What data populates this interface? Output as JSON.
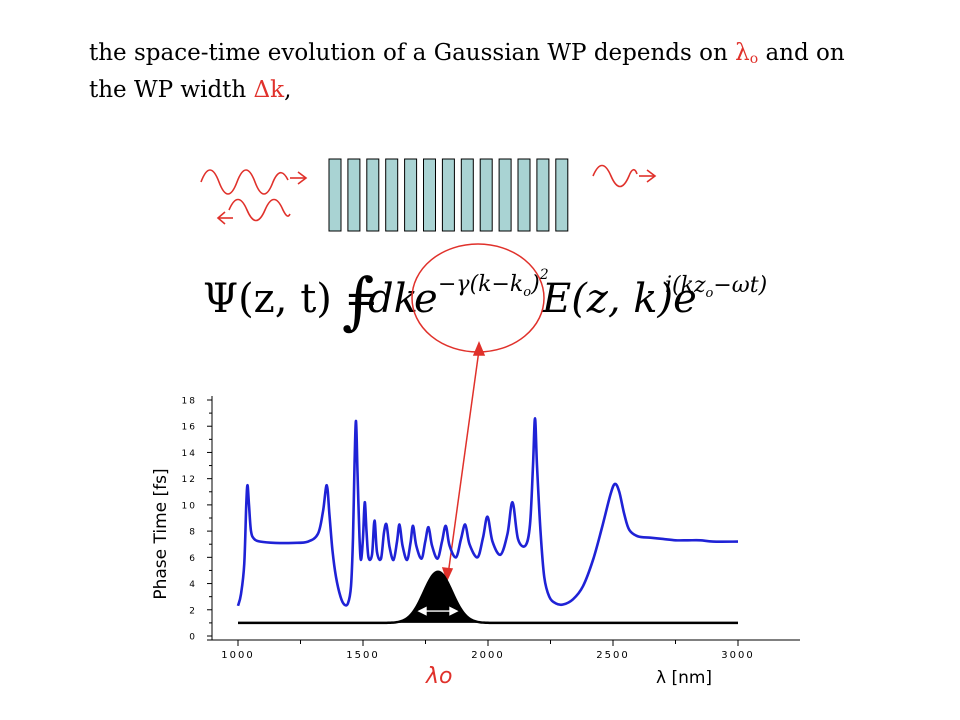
{
  "heading": {
    "line1_before": "the space-time evolution of a Gaussian WP depends on ",
    "lambda_symbol": "λ",
    "lambda_sub": "o",
    "line1_after": " and on",
    "line2_before": "the WP width ",
    "delta_k": "Δk",
    "line2_after": ",",
    "accent_color": "#e0312b"
  },
  "formula": {
    "psi": "Ψ(z, t) =",
    "integral": "∫",
    "dk": "dk",
    "e": "e",
    "gaussian_exponent": "−γ(k−k",
    "gaussian_exponent_sub": "o",
    "gaussian_exponent_close": ")",
    "gaussian_exponent_power": "2",
    "efield": "E(z, k)e",
    "phase_exponent": "i(kz",
    "phase_exponent_sub": "o",
    "phase_exponent_rest": "−ωt)"
  },
  "chart_data": {
    "type": "line",
    "title": "",
    "xlabel": "λ [nm]",
    "ylabel": "Phase Time [fs]",
    "xlim": [
      1000,
      3000
    ],
    "ylim": [
      0,
      18
    ],
    "xticks": [
      "1000",
      "1500",
      "2000",
      "2500",
      "3000"
    ],
    "yticks": [
      "0",
      "2",
      "4",
      "6",
      "8",
      "10",
      "12",
      "14",
      "16",
      "18"
    ],
    "lambda_marker": "λo",
    "lambda_marker_x": 1800,
    "series": [
      {
        "color": "#1f22d6",
        "points": [
          [
            1000,
            2.3
          ],
          [
            1012,
            3.2
          ],
          [
            1025,
            5.5
          ],
          [
            1033,
            10
          ],
          [
            1038,
            11.5
          ],
          [
            1044,
            10
          ],
          [
            1052,
            8
          ],
          [
            1065,
            7.4
          ],
          [
            1090,
            7.2
          ],
          [
            1150,
            7.1
          ],
          [
            1220,
            7.1
          ],
          [
            1280,
            7.2
          ],
          [
            1320,
            7.8
          ],
          [
            1340,
            9.5
          ],
          [
            1355,
            11.5
          ],
          [
            1366,
            9.2
          ],
          [
            1378,
            6.5
          ],
          [
            1392,
            4.5
          ],
          [
            1410,
            3
          ],
          [
            1425,
            2.4
          ],
          [
            1440,
            2.5
          ],
          [
            1452,
            3.8
          ],
          [
            1460,
            7.5
          ],
          [
            1466,
            13
          ],
          [
            1472,
            16.4
          ],
          [
            1478,
            12.5
          ],
          [
            1486,
            7.5
          ],
          [
            1492,
            5.8
          ],
          [
            1500,
            7.5
          ],
          [
            1507,
            10.2
          ],
          [
            1514,
            8
          ],
          [
            1522,
            6
          ],
          [
            1536,
            6.2
          ],
          [
            1546,
            8.8
          ],
          [
            1556,
            6.4
          ],
          [
            1572,
            5.9
          ],
          [
            1584,
            7.9
          ],
          [
            1594,
            8.5
          ],
          [
            1606,
            6.8
          ],
          [
            1622,
            5.8
          ],
          [
            1636,
            7.2
          ],
          [
            1646,
            8.5
          ],
          [
            1658,
            6.9
          ],
          [
            1676,
            5.8
          ],
          [
            1690,
            7.1
          ],
          [
            1700,
            8.4
          ],
          [
            1713,
            6.9
          ],
          [
            1734,
            5.9
          ],
          [
            1749,
            7.2
          ],
          [
            1762,
            8.3
          ],
          [
            1776,
            6.9
          ],
          [
            1798,
            5.9
          ],
          [
            1816,
            7.2
          ],
          [
            1831,
            8.4
          ],
          [
            1846,
            6.9
          ],
          [
            1872,
            6
          ],
          [
            1892,
            7.4
          ],
          [
            1909,
            8.5
          ],
          [
            1926,
            7
          ],
          [
            1958,
            6
          ],
          [
            1980,
            7.5
          ],
          [
            1998,
            9.1
          ],
          [
            2018,
            7.2
          ],
          [
            2050,
            6.2
          ],
          [
            2078,
            7.8
          ],
          [
            2098,
            10.2
          ],
          [
            2120,
            7.4
          ],
          [
            2150,
            6.9
          ],
          [
            2168,
            8.5
          ],
          [
            2180,
            13
          ],
          [
            2188,
            16.6
          ],
          [
            2196,
            13
          ],
          [
            2210,
            8
          ],
          [
            2225,
            4.5
          ],
          [
            2245,
            3
          ],
          [
            2270,
            2.5
          ],
          [
            2300,
            2.4
          ],
          [
            2340,
            2.8
          ],
          [
            2380,
            3.8
          ],
          [
            2420,
            5.8
          ],
          [
            2455,
            8.2
          ],
          [
            2490,
            10.8
          ],
          [
            2508,
            11.6
          ],
          [
            2525,
            11
          ],
          [
            2545,
            9.3
          ],
          [
            2565,
            8.1
          ],
          [
            2600,
            7.6
          ],
          [
            2650,
            7.5
          ],
          [
            2700,
            7.4
          ],
          [
            2750,
            7.3
          ],
          [
            2800,
            7.3
          ],
          [
            2850,
            7.3
          ],
          [
            2900,
            7.2
          ],
          [
            3000,
            7.2
          ]
        ]
      }
    ],
    "gaussian": {
      "color": "#000000",
      "baseline": 1.0,
      "center": 1800,
      "peak": 4.9,
      "sigma": 80
    }
  }
}
